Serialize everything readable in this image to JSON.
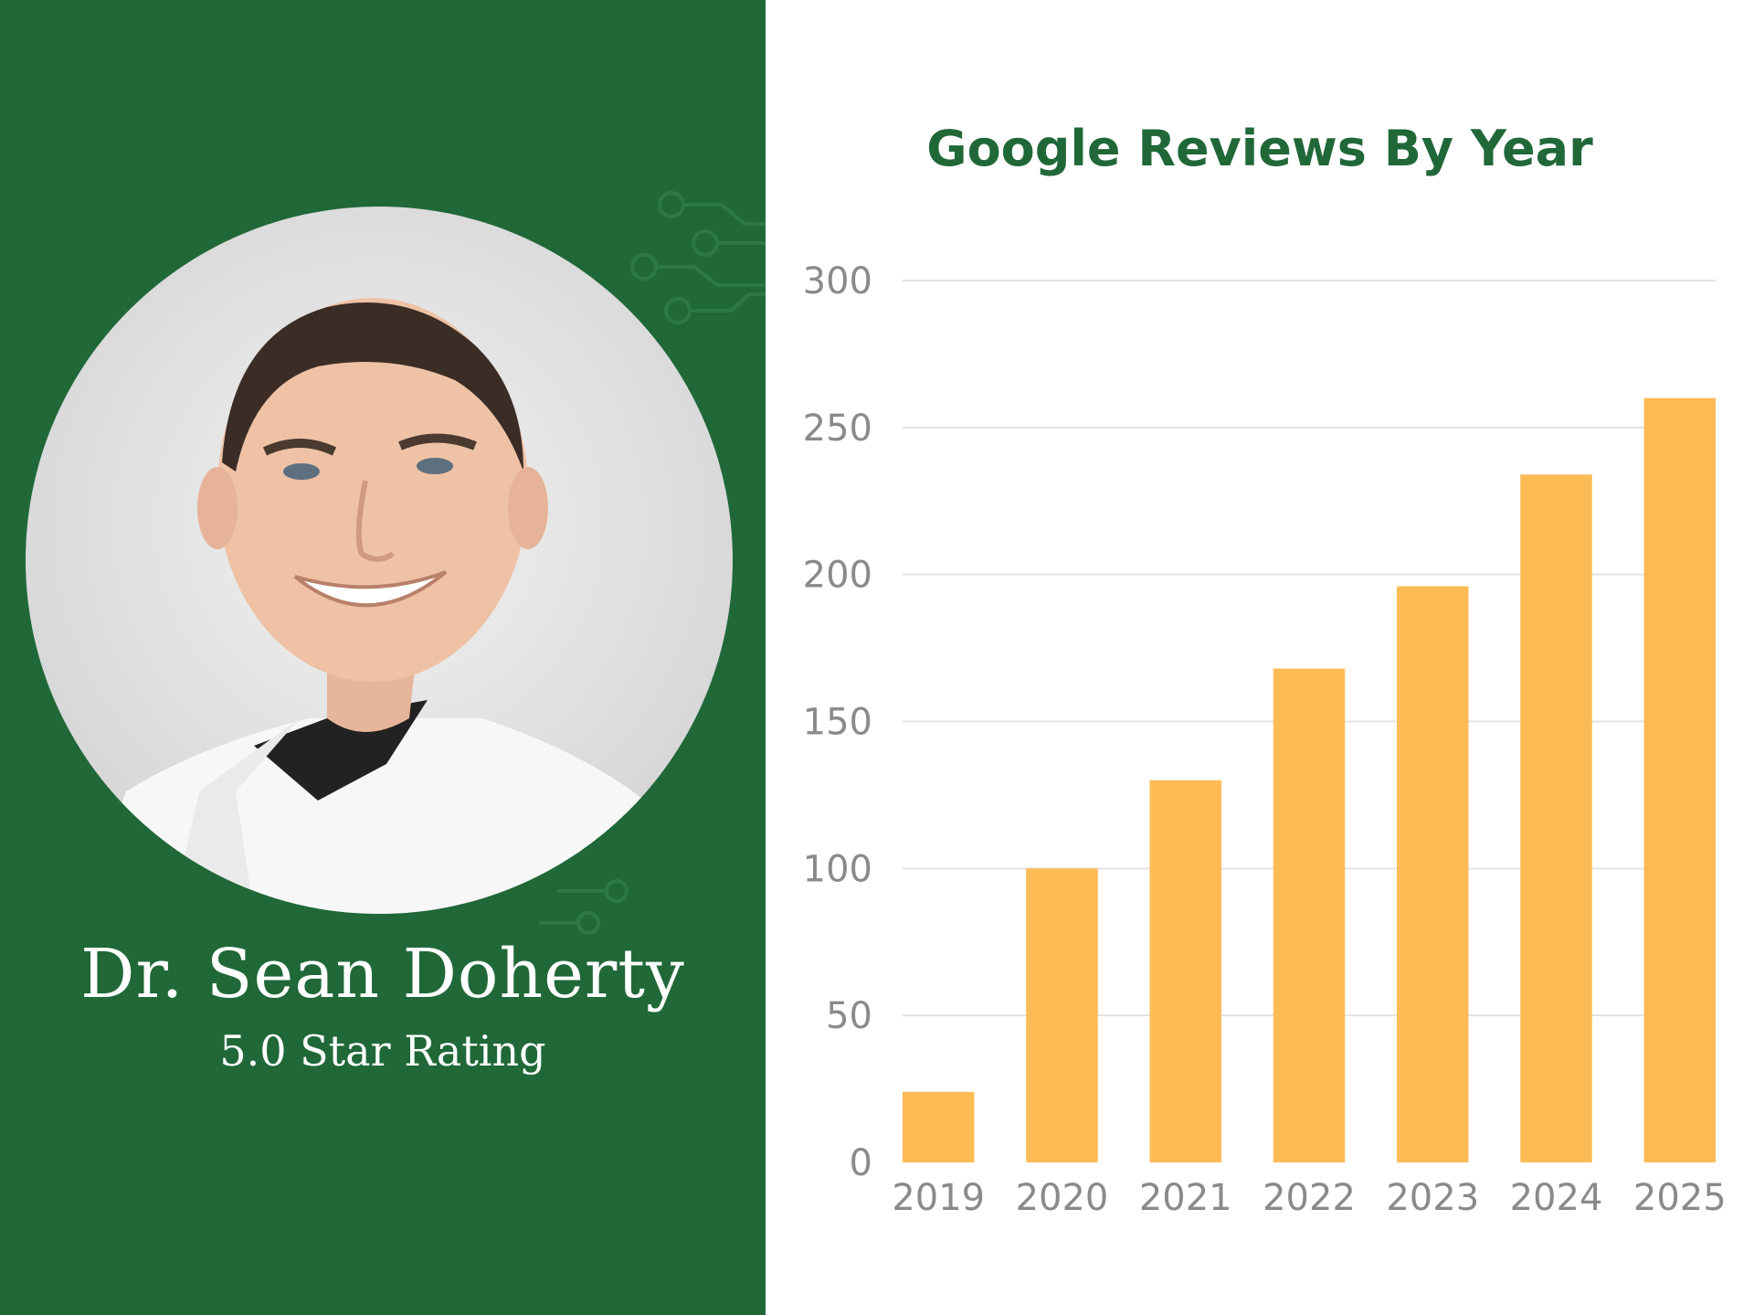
{
  "profile": {
    "name": "Dr. Sean Doherty",
    "rating": "5.0 Star Rating"
  },
  "colors": {
    "panel_green": "#206838",
    "bar_color": "#FDBB55",
    "title_color": "#206838",
    "grid_color": "#e3e3e3",
    "tick_color": "#8a8a8a"
  },
  "chart_data": {
    "type": "bar",
    "title": "Google Reviews By Year",
    "xlabel": "",
    "ylabel": "",
    "categories": [
      "2019",
      "2020",
      "2021",
      "2022",
      "2023",
      "2024",
      "2025"
    ],
    "values": [
      24,
      100,
      130,
      168,
      196,
      234,
      260
    ],
    "ylim": [
      0,
      300
    ],
    "yticks": [
      0,
      50,
      100,
      150,
      200,
      250,
      300
    ],
    "grid": true,
    "legend": "none"
  }
}
